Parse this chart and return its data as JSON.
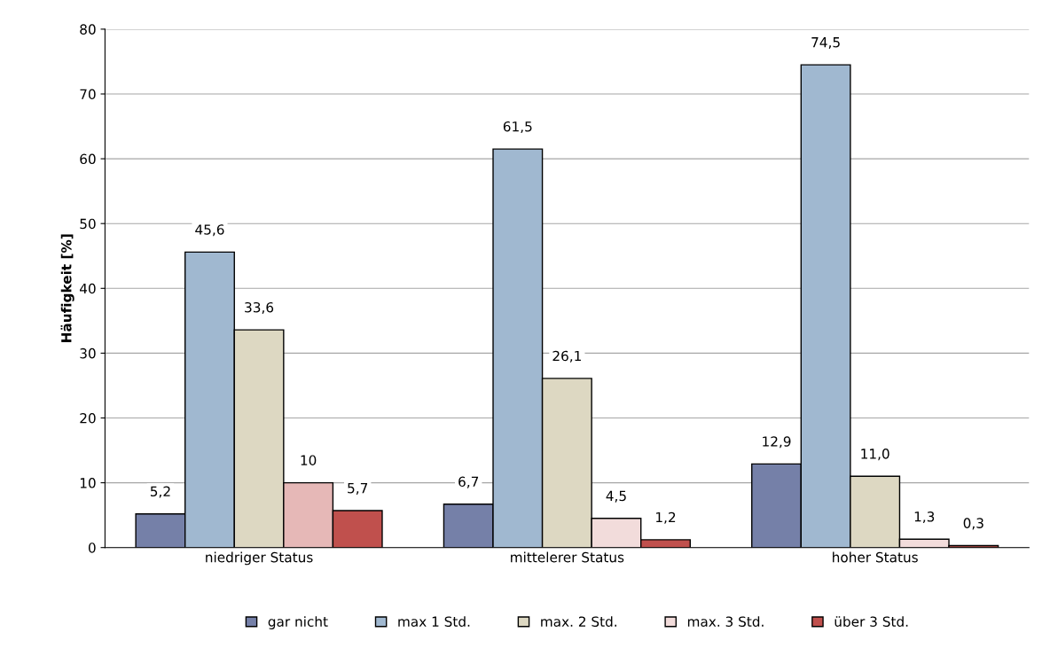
{
  "chart_data": {
    "type": "bar",
    "ylabel": "Häufigkeit [%]",
    "categories": [
      "niedriger Status",
      "mittelerer Status",
      "hoher Status"
    ],
    "series": [
      {
        "name": "gar nicht",
        "color": "#7580a8",
        "values": [
          5.2,
          6.7,
          12.9
        ],
        "value_labels": [
          "5,2",
          "6,7",
          "12,9"
        ]
      },
      {
        "name": "max 1 Std.",
        "color": "#a0b8d0",
        "values": [
          45.6,
          61.5,
          74.5
        ],
        "value_labels": [
          "45,6",
          "61,5",
          "74,5"
        ]
      },
      {
        "name": "max. 2 Std.",
        "color": "#ddd8c2",
        "values": [
          33.6,
          26.1,
          11.0
        ],
        "value_labels": [
          "33,6",
          "26,1",
          "11,0"
        ]
      },
      {
        "name": "max. 3 Std.",
        "color": "#f2dcdb",
        "colors": [
          "#e6b8b7",
          "#f2dcdb",
          "#f2dcdb"
        ],
        "values": [
          10,
          4.5,
          1.3
        ],
        "value_labels": [
          "10",
          "4,5",
          "1,3"
        ]
      },
      {
        "name": "über 3 Std.",
        "color": "#c0504d",
        "values": [
          5.7,
          1.2,
          0.3
        ],
        "value_labels": [
          "5,7",
          "1,2",
          "0,3"
        ]
      }
    ],
    "ylim": [
      0,
      80
    ],
    "yticks": [
      0,
      10,
      20,
      30,
      40,
      50,
      60,
      70,
      80
    ],
    "grid": "y",
    "legend": "bottom"
  }
}
